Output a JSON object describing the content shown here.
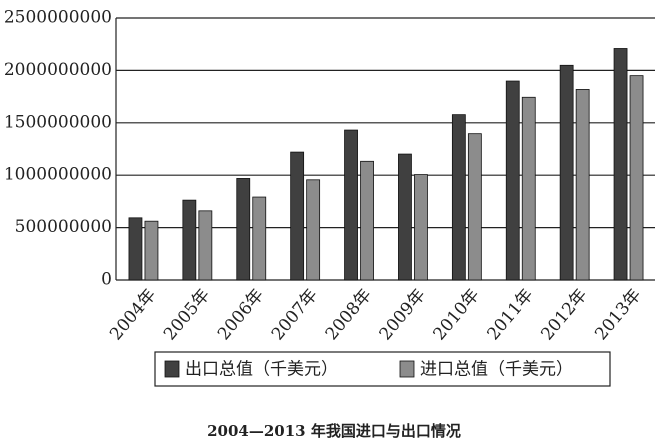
{
  "chart_data": {
    "type": "bar",
    "title": "2004—2013 年我国进口与出口情况",
    "categories": [
      "2004年",
      "2005年",
      "2006年",
      "2007年",
      "2008年",
      "2009年",
      "2010年",
      "2011年",
      "2012年",
      "2013年"
    ],
    "series": [
      {
        "name": "出口总值（千美元）",
        "color": "#404040",
        "values": [
          593300000,
          762000000,
          969100000,
          1220500000,
          1430700000,
          1201600000,
          1577800000,
          1898400000,
          2048700000,
          2209000000
        ]
      },
      {
        "name": "进口总值（千美元）",
        "color": "#8c8c8c",
        "values": [
          561200000,
          660000000,
          791500000,
          956100000,
          1132600000,
          1005900000,
          1396200000,
          1743500000,
          1818400000,
          1950000000
        ]
      }
    ],
    "ylim": [
      0,
      2500000000
    ],
    "yticks": [
      0,
      500000000,
      1000000000,
      1500000000,
      2000000000,
      2500000000
    ],
    "grid": true
  }
}
